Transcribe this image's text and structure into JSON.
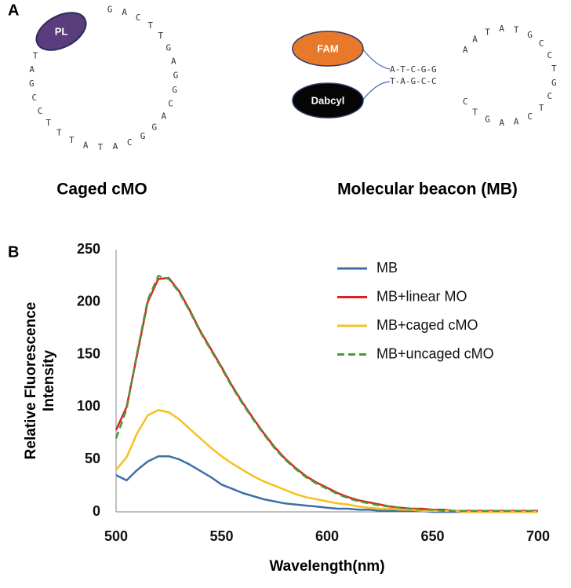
{
  "panel_a": {
    "label": "A",
    "caged": {
      "title": "Caged cMO",
      "tag": "PL",
      "sequence": [
        "G",
        "A",
        "C",
        "T",
        "T",
        "G",
        "A",
        "G",
        "G",
        "C",
        "A",
        "G",
        "G",
        "C",
        "A",
        "T",
        "A",
        "T",
        "T",
        "T",
        "C",
        "C",
        "G",
        "A",
        "T"
      ]
    },
    "beacon": {
      "title": "Molecular beacon (MB)",
      "fluorophore": "FAM",
      "quencher": "Dabcyl",
      "stem_top": "A-T-C-G-G",
      "stem_bottom": "T-A-G-C-C",
      "loop": [
        "A",
        "A",
        "T",
        "A",
        "T",
        "G",
        "C",
        "C",
        "T",
        "G",
        "C",
        "T",
        "C",
        "A",
        "A",
        "G",
        "T",
        "C"
      ]
    }
  },
  "panel_b_label": "B",
  "chart_data": {
    "type": "line",
    "xlabel": "Wavelength(nm)",
    "ylabel": [
      "Relative Fluorescence",
      "Intensity"
    ],
    "x": [
      500,
      505,
      510,
      515,
      520,
      525,
      530,
      535,
      540,
      545,
      550,
      555,
      560,
      565,
      570,
      575,
      580,
      585,
      590,
      595,
      600,
      605,
      610,
      615,
      620,
      625,
      630,
      635,
      640,
      645,
      650,
      655,
      660,
      665,
      670,
      675,
      680,
      685,
      690,
      695,
      700
    ],
    "xlim": [
      500,
      700
    ],
    "xticks": [
      500,
      550,
      600,
      650,
      700
    ],
    "ylim": [
      0,
      250
    ],
    "yticks": [
      0,
      50,
      100,
      150,
      200,
      250
    ],
    "grid": false,
    "legend": "upper right",
    "series": [
      {
        "name": "MB",
        "color": "#3e6fa8",
        "style": "solid",
        "values": [
          35,
          30,
          40,
          48,
          53,
          53,
          50,
          45,
          39,
          33,
          26,
          22,
          18,
          15,
          12,
          10,
          8,
          7,
          6,
          5,
          4,
          3,
          3,
          2,
          2,
          1,
          1,
          1,
          1,
          1,
          0,
          0,
          0,
          0,
          0,
          0,
          0,
          0,
          0,
          0,
          0
        ]
      },
      {
        "name": "MB+linear MO",
        "color": "#e0201e",
        "style": "solid",
        "values": [
          78,
          100,
          150,
          200,
          222,
          223,
          210,
          192,
          172,
          155,
          138,
          120,
          104,
          89,
          75,
          62,
          51,
          42,
          34,
          28,
          23,
          18,
          14,
          11,
          9,
          7,
          5,
          4,
          3,
          3,
          2,
          2,
          1,
          1,
          1,
          1,
          1,
          1,
          1,
          1,
          1
        ]
      },
      {
        "name": "MB+caged cMO",
        "color": "#f5c020",
        "style": "solid",
        "values": [
          40,
          52,
          75,
          92,
          97,
          95,
          88,
          79,
          70,
          61,
          53,
          46,
          40,
          34,
          29,
          25,
          21,
          17,
          14,
          12,
          10,
          8,
          7,
          5,
          4,
          3,
          3,
          2,
          2,
          1,
          1,
          1,
          1,
          0,
          0,
          0,
          0,
          0,
          0,
          0,
          0
        ]
      },
      {
        "name": "MB+uncaged cMO",
        "color": "#4a9a3a",
        "style": "dashed",
        "values": [
          70,
          98,
          152,
          202,
          225,
          222,
          209,
          191,
          171,
          154,
          137,
          119,
          103,
          88,
          74,
          61,
          50,
          41,
          33,
          27,
          22,
          17,
          13,
          10,
          8,
          6,
          5,
          4,
          3,
          2,
          2,
          1,
          1,
          1,
          1,
          1,
          1,
          1,
          1,
          1,
          1
        ]
      }
    ]
  }
}
